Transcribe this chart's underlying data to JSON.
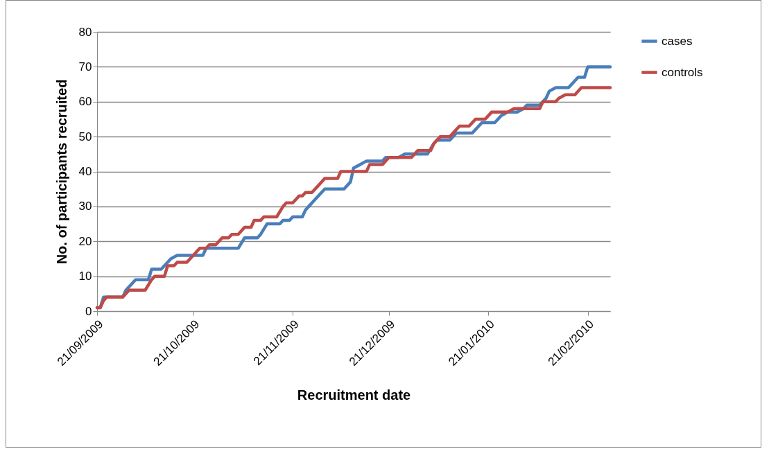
{
  "chart_data": {
    "type": "line",
    "xlabel": "Recruitment date",
    "ylabel": "No. of participants recruited",
    "xlim": [
      "2009-09-21",
      "2010-02-28"
    ],
    "xticks": [
      {
        "value": "2009-09-21",
        "label": "21/09/2009"
      },
      {
        "value": "2009-10-21",
        "label": "21/10/2009"
      },
      {
        "value": "2009-11-21",
        "label": "21/11/2009"
      },
      {
        "value": "2009-12-21",
        "label": "21/12/2009"
      },
      {
        "value": "2010-01-21",
        "label": "21/01/2010"
      },
      {
        "value": "2010-02-21",
        "label": "21/02/2010"
      }
    ],
    "ylim": [
      0,
      80
    ],
    "yticks": [
      0,
      10,
      20,
      30,
      40,
      50,
      60,
      70,
      80
    ],
    "grid": "y",
    "legend": "right",
    "marker": "none",
    "line_style": "solid",
    "series": [
      {
        "name": "cases",
        "color": "#4a7ebb",
        "x": [
          "2009-09-21",
          "2009-09-22",
          "2009-09-23",
          "2009-09-29",
          "2009-09-30",
          "2009-10-02",
          "2009-10-03",
          "2009-10-07",
          "2009-10-08",
          "2009-10-11",
          "2009-10-13",
          "2009-10-14",
          "2009-10-16",
          "2009-10-24",
          "2009-10-25",
          "2009-11-04",
          "2009-11-06",
          "2009-11-10",
          "2009-11-11",
          "2009-11-13",
          "2009-11-17",
          "2009-11-18",
          "2009-11-20",
          "2009-11-21",
          "2009-11-24",
          "2009-11-25",
          "2009-11-26",
          "2009-11-28",
          "2009-11-30",
          "2009-12-01",
          "2009-12-07",
          "2009-12-09",
          "2009-12-10",
          "2009-12-12",
          "2009-12-14",
          "2009-12-19",
          "2009-12-20",
          "2009-12-24",
          "2009-12-26",
          "2010-01-02",
          "2010-01-04",
          "2010-01-05",
          "2010-01-09",
          "2010-01-11",
          "2010-01-16",
          "2010-01-18",
          "2010-01-19",
          "2010-01-23",
          "2010-01-25",
          "2010-01-27",
          "2010-01-30",
          "2010-02-01",
          "2010-02-02",
          "2010-02-06",
          "2010-02-08",
          "2010-02-09",
          "2010-02-11",
          "2010-02-15",
          "2010-02-18",
          "2010-02-20",
          "2010-02-21",
          "2010-02-28"
        ],
        "values": [
          1,
          1,
          4,
          4,
          6,
          8,
          9,
          9,
          12,
          12,
          14,
          15,
          16,
          16,
          18,
          18,
          21,
          21,
          22,
          25,
          25,
          26,
          26,
          27,
          27,
          29,
          30,
          32,
          34,
          35,
          35,
          37,
          41,
          42,
          43,
          43,
          44,
          44,
          45,
          45,
          48,
          49,
          49,
          51,
          51,
          53,
          54,
          54,
          56,
          57,
          57,
          58,
          59,
          59,
          61,
          63,
          64,
          64,
          67,
          67,
          70,
          70
        ]
      },
      {
        "name": "controls",
        "color": "#be4b48",
        "x": [
          "2009-09-21",
          "2009-09-22",
          "2009-09-23",
          "2009-09-24",
          "2009-09-29",
          "2009-10-01",
          "2009-10-06",
          "2009-10-08",
          "2009-10-09",
          "2009-10-12",
          "2009-10-13",
          "2009-10-15",
          "2009-10-16",
          "2009-10-19",
          "2009-10-21",
          "2009-10-23",
          "2009-10-25",
          "2009-10-26",
          "2009-10-28",
          "2009-10-30",
          "2009-11-01",
          "2009-11-02",
          "2009-11-04",
          "2009-11-06",
          "2009-11-08",
          "2009-11-09",
          "2009-11-11",
          "2009-11-12",
          "2009-11-16",
          "2009-11-18",
          "2009-11-19",
          "2009-11-21",
          "2009-11-23",
          "2009-11-24",
          "2009-11-25",
          "2009-11-27",
          "2009-11-29",
          "2009-12-01",
          "2009-12-05",
          "2009-12-06",
          "2009-12-14",
          "2009-12-15",
          "2009-12-19",
          "2009-12-21",
          "2009-12-28",
          "2009-12-30",
          "2010-01-03",
          "2010-01-04",
          "2010-01-06",
          "2010-01-09",
          "2010-01-11",
          "2010-01-12",
          "2010-01-15",
          "2010-01-16",
          "2010-01-17",
          "2010-01-20",
          "2010-01-22",
          "2010-01-27",
          "2010-01-29",
          "2010-02-06",
          "2010-02-07",
          "2010-02-11",
          "2010-02-12",
          "2010-02-14",
          "2010-02-17",
          "2010-02-19",
          "2010-02-28"
        ],
        "values": [
          1,
          1,
          3,
          4,
          4,
          6,
          6,
          9,
          10,
          10,
          13,
          13,
          14,
          14,
          16,
          18,
          18,
          19,
          19,
          21,
          21,
          22,
          22,
          24,
          24,
          26,
          26,
          27,
          27,
          30,
          31,
          31,
          33,
          33,
          34,
          34,
          36,
          38,
          38,
          40,
          40,
          42,
          42,
          44,
          44,
          46,
          46,
          48,
          50,
          50,
          52,
          53,
          53,
          54,
          55,
          55,
          57,
          57,
          58,
          58,
          60,
          60,
          61,
          62,
          62,
          64,
          64
        ]
      }
    ]
  }
}
